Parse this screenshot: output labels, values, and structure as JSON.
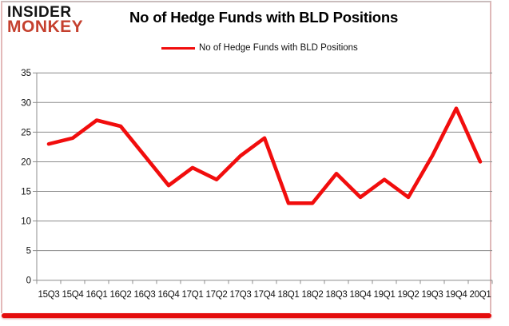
{
  "logo": {
    "line1": "INSIDER",
    "line2": "MONKEY",
    "monkey_color": "#c5402e"
  },
  "header": {
    "title": "No of Hedge Funds with BLD Positions"
  },
  "legend": {
    "label": "No of Hedge Funds with BLD Positions"
  },
  "chart_data": {
    "type": "line",
    "title": "No of Hedge Funds with BLD Positions",
    "categories": [
      "15Q3",
      "15Q4",
      "16Q1",
      "16Q2",
      "16Q3",
      "16Q4",
      "17Q1",
      "17Q2",
      "17Q3",
      "17Q4",
      "18Q1",
      "18Q2",
      "18Q3",
      "18Q4",
      "19Q1",
      "19Q2",
      "19Q3",
      "19Q4",
      "20Q1"
    ],
    "values": [
      23,
      24,
      27,
      26,
      21,
      16,
      19,
      17,
      21,
      24,
      13,
      13,
      18,
      14,
      17,
      14,
      21,
      29,
      20
    ],
    "series_name": "No of Hedge Funds with BLD Positions",
    "xlabel": "",
    "ylabel": "",
    "ylim": [
      0,
      35
    ],
    "ytick_step": 5,
    "grid": "horizontal",
    "legend_position": "top-center",
    "line_color": "#f10d0d",
    "gridline_color": "#8c8c8c",
    "bottom_bar_color": "#e40c0c"
  }
}
